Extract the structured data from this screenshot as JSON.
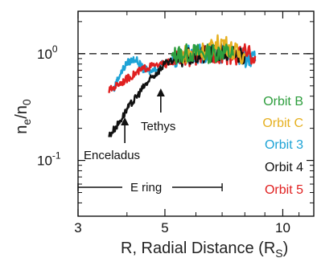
{
  "chart_data": {
    "type": "line",
    "title": "",
    "xlabel": "R, Radial Distance (R",
    "xlabel_sub": "S",
    "xlabel_end": ")",
    "ylabel": "n",
    "ylabel_sub1": "e",
    "ylabel_mid": "/n",
    "ylabel_sub2": "0",
    "x_scale": "log",
    "y_scale": "log",
    "xlim": [
      3,
      12
    ],
    "ylim": [
      0.03,
      2.5
    ],
    "x_ticks": [
      {
        "value": 3,
        "label": "3"
      },
      {
        "value": 5,
        "label": "5"
      },
      {
        "value": 10,
        "label": "10"
      }
    ],
    "y_ticks": [
      {
        "value": 1.0,
        "base": "10",
        "exp": "0"
      },
      {
        "value": 0.1,
        "base": "10",
        "exp": "-1"
      }
    ],
    "reference_line": {
      "y": 1.0,
      "style": "dashed"
    },
    "annotations": {
      "enceladus": {
        "label": "Enceladus",
        "x": 3.95
      },
      "tethys": {
        "label": "Tethys",
        "x": 4.88
      },
      "e_ring": {
        "label": "E ring",
        "x_start": 3.0,
        "x_end": 7.0
      }
    },
    "series": [
      {
        "name": "Orbit B",
        "color": "#2e9e3e",
        "x": [
          5.2,
          5.5,
          6.0,
          6.5,
          7.0,
          7.5
        ],
        "y": [
          0.95,
          1.0,
          1.02,
          1.0,
          1.05,
          0.98
        ]
      },
      {
        "name": "Orbit C",
        "color": "#e6b020",
        "x": [
          5.5,
          6.0,
          6.5,
          7.0,
          7.5,
          8.0
        ],
        "y": [
          0.98,
          1.05,
          1.1,
          1.3,
          1.05,
          0.95
        ]
      },
      {
        "name": "Orbit 3",
        "color": "#1ea3d6",
        "x": [
          3.7,
          3.8,
          4.0,
          4.2,
          4.4,
          4.6,
          5.0,
          5.5,
          6.0,
          6.5,
          7.0,
          7.5,
          8.0,
          8.5
        ],
        "y": [
          0.45,
          0.6,
          0.82,
          0.9,
          0.72,
          0.68,
          0.85,
          0.95,
          1.0,
          1.02,
          0.98,
          1.0,
          0.9,
          0.85
        ]
      },
      {
        "name": "Orbit 4",
        "color": "#111111",
        "x": [
          3.6,
          3.8,
          4.0,
          4.2,
          4.4,
          4.6,
          4.8,
          5.0,
          5.5,
          6.0,
          6.5,
          7.0,
          7.5,
          8.0
        ],
        "y": [
          0.17,
          0.22,
          0.3,
          0.38,
          0.48,
          0.58,
          0.68,
          0.8,
          0.9,
          0.95,
          1.0,
          1.02,
          1.0,
          0.98
        ]
      },
      {
        "name": "Orbit 5",
        "color": "#e02020",
        "x": [
          3.6,
          3.8,
          4.0,
          4.2,
          4.4,
          4.6,
          5.0,
          5.5,
          6.0,
          6.5,
          7.0,
          7.5,
          8.0,
          8.5
        ],
        "y": [
          0.45,
          0.52,
          0.58,
          0.65,
          0.72,
          0.76,
          0.8,
          0.9,
          0.95,
          1.0,
          1.0,
          0.95,
          1.0,
          0.95
        ]
      }
    ]
  }
}
